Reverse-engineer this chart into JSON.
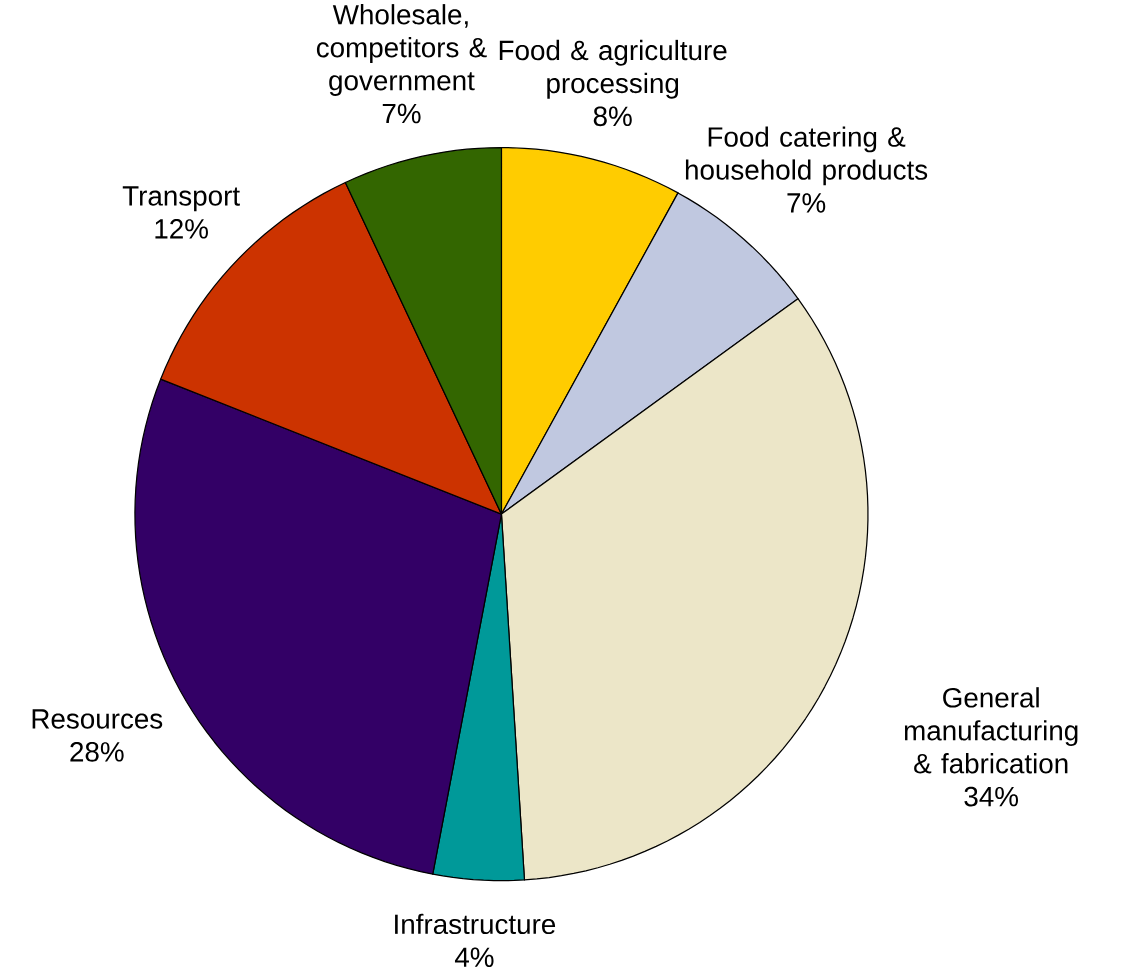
{
  "chart_data": {
    "type": "pie",
    "categories": [
      "Food & agriculture processing",
      "Food catering & household products",
      "General manufacturing & fabrication",
      "Infrastructure",
      "Resources",
      "Transport",
      "Wholesale, competitors & government"
    ],
    "values": [
      8,
      7,
      34,
      4,
      28,
      12,
      7
    ],
    "value_labels": [
      "8%",
      "7%",
      "34%",
      "4%",
      "28%",
      "12%",
      "7%"
    ],
    "colors": [
      "#ffcc00",
      "#c0c8e0",
      "#ece6c8",
      "#009999",
      "#330066",
      "#cc3300",
      "#336600"
    ]
  }
}
